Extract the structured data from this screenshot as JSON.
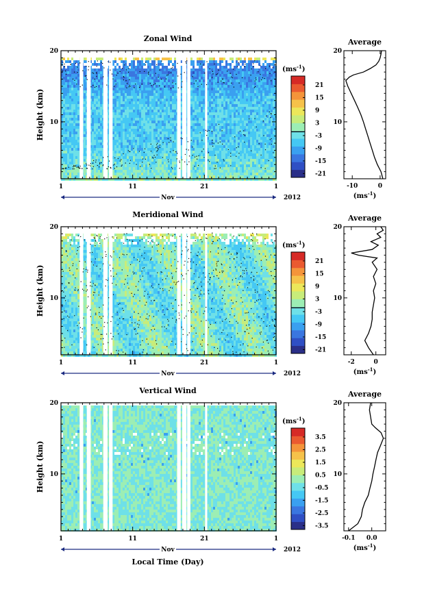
{
  "figure": {
    "x_axis_label": "Local Time (Day)",
    "y_axis_label": "Height (km)",
    "month_label": "Nov",
    "year_label": "2012",
    "x_tick_labels": [
      "1",
      "11",
      "21",
      "1"
    ],
    "y_tick_labels": [
      "10",
      "20"
    ]
  },
  "palette": [
    "#2a2f88",
    "#2f4fc4",
    "#3a76e0",
    "#3aa0f0",
    "#45c8f4",
    "#6ee0e8",
    "#9ceeb4",
    "#c8ec7a",
    "#ece75a",
    "#f6c24a",
    "#f4943a",
    "#ea5a30",
    "#d62a26"
  ],
  "chart_data": [
    {
      "type": "heatmap",
      "title": "Zonal Wind",
      "ylabel": "Height (km)",
      "x_range_days": [
        1,
        31
      ],
      "ylim": [
        2,
        20
      ],
      "colorbar": {
        "unit": "(ms",
        "unit_exp": "-1",
        "unit_close": ")",
        "ticks": [
          "21",
          "15",
          "9",
          "3",
          "-3",
          "-9",
          "-15",
          "-21"
        ],
        "zero_line": true
      },
      "profile": {
        "title": "Average",
        "xlabel": "(ms",
        "xlabel_exp": "-1",
        "xlabel_close": ")",
        "xlim": [
          -13,
          2
        ],
        "x_ticks": [
          "-10",
          "0"
        ],
        "y_ticks": [
          "10",
          "20"
        ],
        "points": [
          [
            1,
            2
          ],
          [
            0.3,
            3
          ],
          [
            -1,
            4
          ],
          [
            -2,
            5
          ],
          [
            -2.8,
            6
          ],
          [
            -3.6,
            7
          ],
          [
            -4.4,
            8
          ],
          [
            -5.2,
            9
          ],
          [
            -6,
            10
          ],
          [
            -6.9,
            11
          ],
          [
            -8,
            12
          ],
          [
            -9.2,
            13
          ],
          [
            -10.4,
            14
          ],
          [
            -11.6,
            15
          ],
          [
            -12.3,
            15.8
          ],
          [
            -11,
            16.3
          ],
          [
            -9.5,
            16.6
          ],
          [
            -6,
            17
          ],
          [
            -3.5,
            17.5
          ],
          [
            -1.5,
            18
          ],
          [
            -0.5,
            18.5
          ],
          [
            0,
            19
          ],
          [
            0.3,
            19.5
          ],
          [
            0.5,
            20
          ]
        ]
      }
    },
    {
      "type": "heatmap",
      "title": "Meridional Wind",
      "ylabel": "Height (km)",
      "x_range_days": [
        1,
        31
      ],
      "ylim": [
        2,
        20
      ],
      "colorbar": {
        "unit": "(ms",
        "unit_exp": "-1",
        "unit_close": ")",
        "ticks": [
          "21",
          "15",
          "9",
          "3",
          "-3",
          "-9",
          "-15",
          "-21"
        ],
        "zero_line": true
      },
      "profile": {
        "title": "Average",
        "xlabel": "(ms",
        "xlabel_exp": "-1",
        "xlabel_close": ")",
        "xlim": [
          -2.6,
          0.8
        ],
        "x_ticks": [
          "-2",
          "0"
        ],
        "y_ticks": [
          "10",
          "20"
        ],
        "points": [
          [
            -0.2,
            2
          ],
          [
            -0.6,
            3
          ],
          [
            -0.9,
            4
          ],
          [
            -0.6,
            5
          ],
          [
            -0.4,
            6
          ],
          [
            -0.3,
            7
          ],
          [
            -0.3,
            8
          ],
          [
            -0.2,
            9
          ],
          [
            -0.1,
            10
          ],
          [
            -0.2,
            11
          ],
          [
            0,
            12
          ],
          [
            -0.2,
            13
          ],
          [
            0.1,
            14
          ],
          [
            -0.3,
            15
          ],
          [
            0.1,
            15.6
          ],
          [
            -1.4,
            16
          ],
          [
            -2,
            16.3
          ],
          [
            -0.3,
            16.8
          ],
          [
            0.2,
            17.4
          ],
          [
            -0.4,
            17.9
          ],
          [
            0.4,
            18.5
          ],
          [
            0.1,
            19
          ],
          [
            0.6,
            19.5
          ],
          [
            0.4,
            20
          ]
        ]
      }
    },
    {
      "type": "heatmap",
      "title": "Vertical Wind",
      "ylabel": "Height (km)",
      "x_range_days": [
        1,
        31
      ],
      "ylim": [
        2,
        20
      ],
      "colorbar": {
        "unit": "(ms",
        "unit_exp": "-1",
        "unit_close": ")",
        "ticks": [
          "3.5",
          "2.5",
          "1.5",
          "0.5",
          "-0.5",
          "-1.5",
          "-2.5",
          "-3.5"
        ],
        "zero_line": false
      },
      "profile": {
        "title": "Average",
        "xlabel": "(ms",
        "xlabel_exp": "-1",
        "xlabel_close": ")",
        "xlim": [
          -0.12,
          0.06
        ],
        "x_ticks": [
          "-0.1",
          "0.0"
        ],
        "y_ticks": [
          "10",
          "20"
        ],
        "points": [
          [
            -0.1,
            2
          ],
          [
            -0.06,
            3
          ],
          [
            -0.045,
            4
          ],
          [
            -0.04,
            5
          ],
          [
            -0.03,
            6
          ],
          [
            -0.015,
            7
          ],
          [
            -0.008,
            8
          ],
          [
            0,
            9
          ],
          [
            0.005,
            10
          ],
          [
            0.012,
            11
          ],
          [
            0.018,
            12
          ],
          [
            0.025,
            13
          ],
          [
            0.038,
            14
          ],
          [
            0.05,
            15
          ],
          [
            0.04,
            15.8
          ],
          [
            0.015,
            16.5
          ],
          [
            0,
            17
          ],
          [
            -0.005,
            18
          ],
          [
            -0.01,
            19
          ],
          [
            -0.005,
            20
          ]
        ]
      }
    }
  ]
}
